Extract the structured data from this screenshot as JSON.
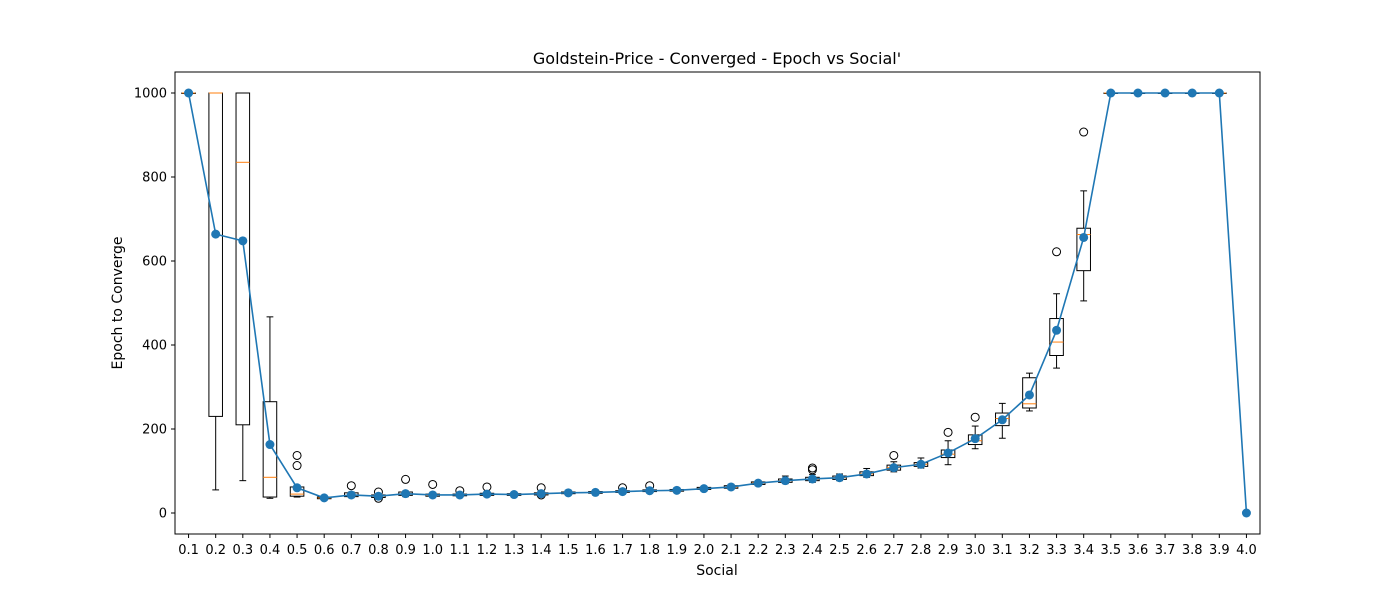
{
  "chart_data": {
    "type": "box_with_line",
    "title": "Goldstein-Price - Converged - Epoch vs Social'",
    "xlabel": "Social",
    "ylabel": "Epoch to Converge",
    "ylim": [
      -50,
      1050
    ],
    "yticks": [
      0,
      200,
      400,
      600,
      800,
      1000
    ],
    "grid": false,
    "categories": [
      "0.1",
      "0.2",
      "0.3",
      "0.4",
      "0.5",
      "0.6",
      "0.7",
      "0.8",
      "0.9",
      "1.0",
      "1.1",
      "1.2",
      "1.3",
      "1.4",
      "1.5",
      "1.6",
      "1.7",
      "1.8",
      "1.9",
      "2.0",
      "2.1",
      "2.2",
      "2.3",
      "2.4",
      "2.5",
      "2.6",
      "2.7",
      "2.8",
      "2.9",
      "3.0",
      "3.1",
      "3.2",
      "3.3",
      "3.4",
      "3.5",
      "3.6",
      "3.7",
      "3.8",
      "3.9",
      "4.0"
    ],
    "series": [
      {
        "type": "line",
        "color": "#1f77b4",
        "values": [
          1000,
          664,
          648,
          163,
          60,
          36,
          43,
          40,
          46,
          43,
          43,
          45,
          44,
          46,
          48,
          49,
          51,
          53,
          54,
          58,
          62,
          71,
          77,
          81,
          84,
          93,
          108,
          116,
          143,
          177,
          222,
          281,
          435,
          656,
          1000,
          1000,
          1000,
          1000,
          1000,
          0
        ]
      },
      {
        "type": "box",
        "color": "#000000",
        "median_color": "#ff7f0e",
        "boxes": [
          {
            "q1": 1000,
            "median": 1000,
            "q3": 1000,
            "whislo": 1000,
            "whishi": 1000,
            "fliers": []
          },
          {
            "q1": 230,
            "median": 1000,
            "q3": 1000,
            "whislo": 55,
            "whishi": 1000,
            "fliers": []
          },
          {
            "q1": 210,
            "median": 835,
            "q3": 1000,
            "whislo": 77,
            "whishi": 1000,
            "fliers": []
          },
          {
            "q1": 38,
            "median": 85,
            "q3": 265,
            "whislo": 35,
            "whishi": 467,
            "fliers": []
          },
          {
            "q1": 40,
            "median": 45,
            "q3": 62,
            "whislo": 38,
            "whishi": 62,
            "fliers": [
              113,
              137
            ]
          },
          {
            "q1": 34,
            "median": 36,
            "q3": 38,
            "whislo": 32,
            "whishi": 40,
            "fliers": []
          },
          {
            "q1": 39,
            "median": 42,
            "q3": 48,
            "whislo": 37,
            "whishi": 50,
            "fliers": [
              65
            ]
          },
          {
            "q1": 37,
            "median": 40,
            "q3": 43,
            "whislo": 33,
            "whishi": 45,
            "fliers": [
              50,
              35
            ]
          },
          {
            "q1": 42,
            "median": 45,
            "q3": 50,
            "whislo": 39,
            "whishi": 52,
            "fliers": [
              80
            ]
          },
          {
            "q1": 40,
            "median": 42,
            "q3": 45,
            "whislo": 38,
            "whishi": 47,
            "fliers": [
              68
            ]
          },
          {
            "q1": 41,
            "median": 43,
            "q3": 45,
            "whislo": 39,
            "whishi": 47,
            "fliers": [
              53
            ]
          },
          {
            "q1": 42,
            "median": 44,
            "q3": 47,
            "whislo": 40,
            "whishi": 50,
            "fliers": [
              62
            ]
          },
          {
            "q1": 42,
            "median": 44,
            "q3": 46,
            "whislo": 40,
            "whishi": 48,
            "fliers": []
          },
          {
            "q1": 43,
            "median": 45,
            "q3": 48,
            "whislo": 41,
            "whishi": 50,
            "fliers": [
              60,
              43
            ]
          },
          {
            "q1": 46,
            "median": 48,
            "q3": 50,
            "whislo": 44,
            "whishi": 52,
            "fliers": []
          },
          {
            "q1": 47,
            "median": 49,
            "q3": 51,
            "whislo": 45,
            "whishi": 53,
            "fliers": []
          },
          {
            "q1": 49,
            "median": 51,
            "q3": 53,
            "whislo": 47,
            "whishi": 55,
            "fliers": [
              60
            ]
          },
          {
            "q1": 51,
            "median": 53,
            "q3": 55,
            "whislo": 49,
            "whishi": 57,
            "fliers": [
              65
            ]
          },
          {
            "q1": 52,
            "median": 54,
            "q3": 56,
            "whislo": 50,
            "whishi": 58,
            "fliers": []
          },
          {
            "q1": 56,
            "median": 58,
            "q3": 61,
            "whislo": 53,
            "whishi": 63,
            "fliers": []
          },
          {
            "q1": 59,
            "median": 62,
            "q3": 65,
            "whislo": 56,
            "whishi": 67,
            "fliers": []
          },
          {
            "q1": 68,
            "median": 71,
            "q3": 74,
            "whislo": 65,
            "whishi": 76,
            "fliers": []
          },
          {
            "q1": 73,
            "median": 77,
            "q3": 81,
            "whislo": 70,
            "whishi": 88,
            "fliers": []
          },
          {
            "q1": 77,
            "median": 80,
            "q3": 85,
            "whislo": 73,
            "whishi": 92,
            "fliers": [
              103,
              107
            ]
          },
          {
            "q1": 80,
            "median": 84,
            "q3": 88,
            "whislo": 77,
            "whishi": 93,
            "fliers": []
          },
          {
            "q1": 89,
            "median": 93,
            "q3": 98,
            "whislo": 85,
            "whishi": 106,
            "fliers": []
          },
          {
            "q1": 102,
            "median": 108,
            "q3": 114,
            "whislo": 98,
            "whishi": 122,
            "fliers": [
              137
            ]
          },
          {
            "q1": 111,
            "median": 116,
            "q3": 120,
            "whislo": 107,
            "whishi": 131,
            "fliers": []
          },
          {
            "q1": 132,
            "median": 140,
            "q3": 150,
            "whislo": 115,
            "whishi": 172,
            "fliers": [
              192
            ]
          },
          {
            "q1": 163,
            "median": 172,
            "q3": 186,
            "whislo": 153,
            "whishi": 207,
            "fliers": [
              228
            ]
          },
          {
            "q1": 208,
            "median": 225,
            "q3": 238,
            "whislo": 178,
            "whishi": 261,
            "fliers": []
          },
          {
            "q1": 250,
            "median": 260,
            "q3": 322,
            "whislo": 243,
            "whishi": 333,
            "fliers": []
          },
          {
            "q1": 375,
            "median": 407,
            "q3": 463,
            "whislo": 345,
            "whishi": 522,
            "fliers": [
              622
            ]
          },
          {
            "q1": 577,
            "median": 663,
            "q3": 678,
            "whislo": 505,
            "whishi": 767,
            "fliers": [
              907
            ]
          },
          {
            "q1": 1000,
            "median": 1000,
            "q3": 1000,
            "whislo": 1000,
            "whishi": 1000,
            "fliers": []
          },
          {
            "q1": 1000,
            "median": 1000,
            "q3": 1000,
            "whislo": 1000,
            "whishi": 1000,
            "fliers": []
          },
          {
            "q1": 1000,
            "median": 1000,
            "q3": 1000,
            "whislo": 1000,
            "whishi": 1000,
            "fliers": []
          },
          {
            "q1": 1000,
            "median": 1000,
            "q3": 1000,
            "whislo": 1000,
            "whishi": 1000,
            "fliers": []
          },
          {
            "q1": 1000,
            "median": 1000,
            "q3": 1000,
            "whislo": 1000,
            "whishi": 1000,
            "fliers": []
          },
          null
        ]
      }
    ]
  }
}
